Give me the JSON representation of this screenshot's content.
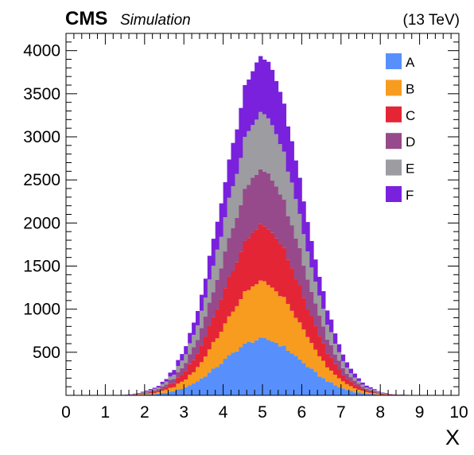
{
  "header": {
    "experiment": "CMS",
    "subtitle": "Simulation",
    "energy": "(13 TeV)"
  },
  "chart_data": {
    "type": "bar",
    "stacked": true,
    "histogram": true,
    "xlabel": "X",
    "ylabel": "",
    "xlim": [
      0,
      10
    ],
    "ylim": [
      0,
      4200
    ],
    "x_ticks": [
      0,
      1,
      2,
      3,
      4,
      5,
      6,
      7,
      8,
      9,
      10
    ],
    "y_ticks": [
      500,
      1000,
      1500,
      2000,
      2500,
      3000,
      3500,
      4000
    ],
    "grid": false,
    "legend_position": "top-right",
    "bins": {
      "start": 0,
      "end": 10,
      "count": 100
    },
    "distribution": "gaussian",
    "series": [
      {
        "name": "A",
        "color": "#5790fc",
        "mean": 5.0,
        "sigma": 1.0,
        "peak": 650
      },
      {
        "name": "B",
        "color": "#f89c20",
        "mean": 5.0,
        "sigma": 1.0,
        "peak": 650
      },
      {
        "name": "C",
        "color": "#e42536",
        "mean": 5.0,
        "sigma": 1.0,
        "peak": 650
      },
      {
        "name": "D",
        "color": "#964a8b",
        "mean": 5.0,
        "sigma": 1.0,
        "peak": 650
      },
      {
        "name": "E",
        "color": "#9c9ca1",
        "mean": 5.0,
        "sigma": 1.0,
        "peak": 650
      },
      {
        "name": "F",
        "color": "#7a21dd",
        "mean": 5.0,
        "sigma": 1.0,
        "peak": 650
      }
    ]
  }
}
